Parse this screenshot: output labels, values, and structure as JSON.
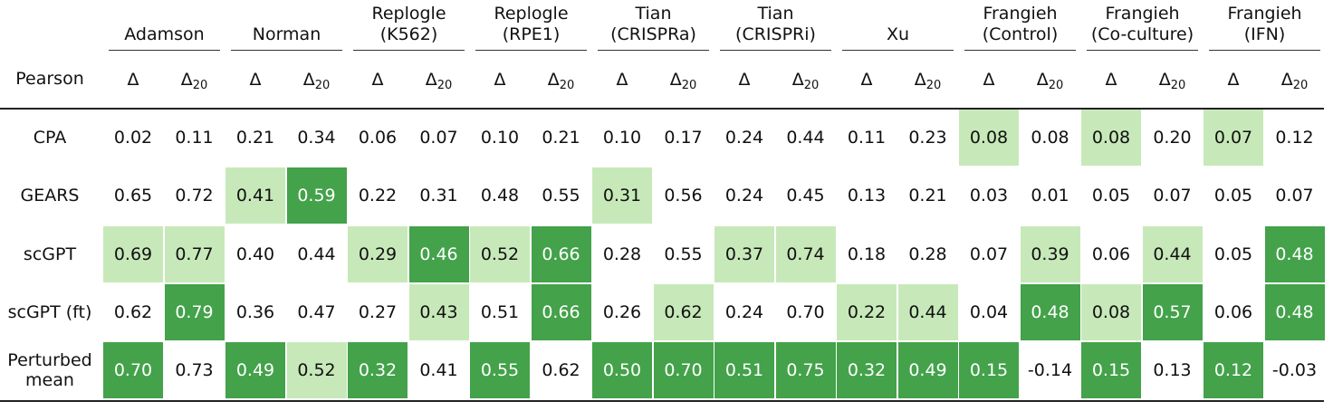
{
  "chart_data": {
    "type": "table",
    "corner_label": "Pearson",
    "groups": [
      {
        "name": "Adamson"
      },
      {
        "name": "Norman"
      },
      {
        "name": "Replogle\n(K562)"
      },
      {
        "name": "Replogle\n(RPE1)"
      },
      {
        "name": "Tian\n(CRISPRa)"
      },
      {
        "name": "Tian\n(CRISPRi)"
      },
      {
        "name": "Xu"
      },
      {
        "name": "Frangieh\n(Control)"
      },
      {
        "name": "Frangieh\n(Co-culture)"
      },
      {
        "name": "Frangieh\n(IFN)"
      }
    ],
    "subcolumns": [
      {
        "symbol": "Δ",
        "subscript": ""
      },
      {
        "symbol": "Δ",
        "subscript": "20"
      }
    ],
    "rows": [
      {
        "label": "CPA",
        "values": [
          "0.02",
          "0.11",
          "0.21",
          "0.34",
          "0.06",
          "0.07",
          "0.10",
          "0.21",
          "0.10",
          "0.17",
          "0.24",
          "0.44",
          "0.11",
          "0.23",
          "0.08",
          "0.08",
          "0.08",
          "0.20",
          "0.07",
          "0.12"
        ],
        "highlight": [
          0,
          0,
          0,
          0,
          0,
          0,
          0,
          0,
          0,
          0,
          0,
          0,
          0,
          0,
          1,
          0,
          1,
          0,
          1,
          0
        ]
      },
      {
        "label": "GEARS",
        "values": [
          "0.65",
          "0.72",
          "0.41",
          "0.59",
          "0.22",
          "0.31",
          "0.48",
          "0.55",
          "0.31",
          "0.56",
          "0.24",
          "0.45",
          "0.13",
          "0.21",
          "0.03",
          "0.01",
          "0.05",
          "0.07",
          "0.05",
          "0.07"
        ],
        "highlight": [
          0,
          0,
          1,
          2,
          0,
          0,
          0,
          0,
          1,
          0,
          0,
          0,
          0,
          0,
          0,
          0,
          0,
          0,
          0,
          0
        ]
      },
      {
        "label": "scGPT",
        "values": [
          "0.69",
          "0.77",
          "0.40",
          "0.44",
          "0.29",
          "0.46",
          "0.52",
          "0.66",
          "0.28",
          "0.55",
          "0.37",
          "0.74",
          "0.18",
          "0.28",
          "0.07",
          "0.39",
          "0.06",
          "0.44",
          "0.05",
          "0.48"
        ],
        "highlight": [
          1,
          1,
          0,
          0,
          1,
          2,
          1,
          2,
          0,
          0,
          1,
          1,
          0,
          0,
          0,
          1,
          0,
          1,
          0,
          2
        ]
      },
      {
        "label": "scGPT (ft)",
        "values": [
          "0.62",
          "0.79",
          "0.36",
          "0.47",
          "0.27",
          "0.43",
          "0.51",
          "0.66",
          "0.26",
          "0.62",
          "0.24",
          "0.70",
          "0.22",
          "0.44",
          "0.04",
          "0.48",
          "0.08",
          "0.57",
          "0.06",
          "0.48"
        ],
        "highlight": [
          0,
          2,
          0,
          0,
          0,
          1,
          0,
          2,
          0,
          1,
          0,
          0,
          1,
          1,
          0,
          2,
          1,
          2,
          0,
          2
        ]
      },
      {
        "label": "Perturbed\nmean",
        "values": [
          "0.70",
          "0.73",
          "0.49",
          "0.52",
          "0.32",
          "0.41",
          "0.55",
          "0.62",
          "0.50",
          "0.70",
          "0.51",
          "0.75",
          "0.32",
          "0.49",
          "0.15",
          "-0.14",
          "0.15",
          "0.13",
          "0.12",
          "-0.03"
        ],
        "highlight": [
          2,
          0,
          2,
          1,
          2,
          0,
          2,
          0,
          2,
          2,
          2,
          2,
          2,
          2,
          2,
          0,
          2,
          0,
          2,
          0
        ]
      }
    ],
    "colors": {
      "best": "#43a24a",
      "second": "#c7e9b9",
      "none": "#ffffff",
      "best_text": "#ffffff",
      "text": "#111111"
    }
  }
}
